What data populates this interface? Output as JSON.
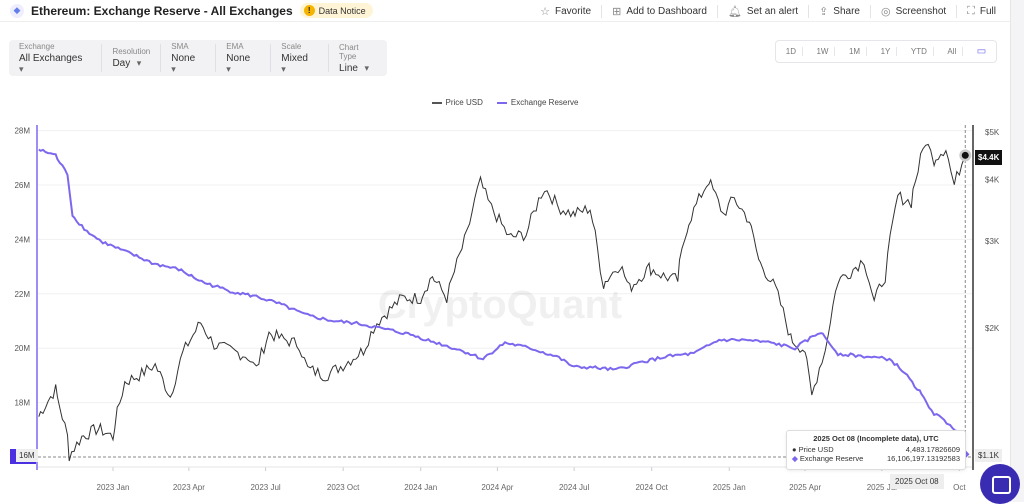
{
  "header": {
    "title": "Ethereum: Exchange Reserve - All Exchanges",
    "notice": "Data Notice",
    "actions": [
      {
        "icon": "star-icon",
        "glyph": "☆",
        "label": "Favorite"
      },
      {
        "icon": "dashboard-icon",
        "glyph": "⊞",
        "label": "Add to Dashboard"
      },
      {
        "icon": "bell-icon",
        "glyph": "🔔︎",
        "label": "Set an alert"
      },
      {
        "icon": "share-icon",
        "glyph": "⇪",
        "label": "Share"
      },
      {
        "icon": "camera-icon",
        "glyph": "◎",
        "label": "Screenshot"
      },
      {
        "icon": "fullscreen-icon",
        "glyph": "⛶",
        "label": "Full"
      }
    ]
  },
  "controls": [
    {
      "label": "Exchange",
      "value": "All Exchanges"
    },
    {
      "label": "Resolution",
      "value": "Day"
    },
    {
      "label": "SMA",
      "value": "None"
    },
    {
      "label": "EMA",
      "value": "None"
    },
    {
      "label": "Scale",
      "value": "Mixed"
    },
    {
      "label": "Chart Type",
      "value": "Line"
    }
  ],
  "ranges": [
    "1D",
    "1W",
    "1M",
    "1Y",
    "YTD",
    "All"
  ],
  "watermark": "CryptoQuant",
  "tooltip": {
    "date": "2025 Oct 08 (Incomplete data), UTC",
    "rows": [
      {
        "label": "Price USD",
        "value": "4,483.17826609"
      },
      {
        "label": "Exchange Reserve",
        "value": "16,106,197.13192583"
      }
    ]
  },
  "crosshair": {
    "date": "2025 Oct 08",
    "price_tag": "$4.4K",
    "low_tag": "$1.1K",
    "reserve_tag": "16M"
  },
  "chart_data": {
    "type": "line",
    "legend_position": "top-center",
    "grid": true,
    "left_axis": {
      "ticks": [
        "28M",
        "26M",
        "24M",
        "22M",
        "20M",
        "18M"
      ],
      "range": [
        16,
        28.2
      ],
      "unit": "M"
    },
    "right_axis": {
      "ticks": [
        "$5K",
        "$4K",
        "$3K",
        "$2K"
      ],
      "scale": "log",
      "range": [
        1100,
        5000
      ]
    },
    "x_ticks": [
      "2023 Jan",
      "2023 Apr",
      "2023 Jul",
      "2023 Oct",
      "2024 Jan",
      "2024 Apr",
      "2024 Jul",
      "2024 Oct",
      "2025 Jan",
      "2025 Apr",
      "2025 Jul",
      "Oct"
    ],
    "series": [
      {
        "name": "Price USD",
        "color": "#333333",
        "axis": "right",
        "points": [
          [
            "2022-10-05",
            1320
          ],
          [
            "2022-10-25",
            1500
          ],
          [
            "2022-11-08",
            1200
          ],
          [
            "2022-11-10",
            1100
          ],
          [
            "2022-11-25",
            1200
          ],
          [
            "2022-12-15",
            1250
          ],
          [
            "2023-01-01",
            1200
          ],
          [
            "2023-01-15",
            1550
          ],
          [
            "2023-02-01",
            1600
          ],
          [
            "2023-02-20",
            1680
          ],
          [
            "2023-03-10",
            1450
          ],
          [
            "2023-03-25",
            1780
          ],
          [
            "2023-04-15",
            2050
          ],
          [
            "2023-05-01",
            1850
          ],
          [
            "2023-05-20",
            1800
          ],
          [
            "2023-06-10",
            1750
          ],
          [
            "2023-06-20",
            1650
          ],
          [
            "2023-07-05",
            1950
          ],
          [
            "2023-07-20",
            1900
          ],
          [
            "2023-08-10",
            1850
          ],
          [
            "2023-08-20",
            1650
          ],
          [
            "2023-09-10",
            1600
          ],
          [
            "2023-10-01",
            1680
          ],
          [
            "2023-10-25",
            1800
          ],
          [
            "2023-11-10",
            2050
          ],
          [
            "2023-12-10",
            2300
          ],
          [
            "2024-01-01",
            2300
          ],
          [
            "2024-01-15",
            2550
          ],
          [
            "2024-02-01",
            2300
          ],
          [
            "2024-02-25",
            3100
          ],
          [
            "2024-03-12",
            3950
          ],
          [
            "2024-03-25",
            3500
          ],
          [
            "2024-04-15",
            3050
          ],
          [
            "2024-05-05",
            3100
          ],
          [
            "2024-05-27",
            3850
          ],
          [
            "2024-06-15",
            3500
          ],
          [
            "2024-06-30",
            3400
          ],
          [
            "2024-07-20",
            3500
          ],
          [
            "2024-08-05",
            2450
          ],
          [
            "2024-08-25",
            2700
          ],
          [
            "2024-09-05",
            2400
          ],
          [
            "2024-09-28",
            2650
          ],
          [
            "2024-10-15",
            2550
          ],
          [
            "2024-11-01",
            2500
          ],
          [
            "2024-11-12",
            3200
          ],
          [
            "2024-12-08",
            4000
          ],
          [
            "2024-12-25",
            3400
          ],
          [
            "2025-01-07",
            3650
          ],
          [
            "2025-01-25",
            3300
          ],
          [
            "2025-02-05",
            2750
          ],
          [
            "2025-02-25",
            2400
          ],
          [
            "2025-03-15",
            1900
          ],
          [
            "2025-04-01",
            1800
          ],
          [
            "2025-04-09",
            1450
          ],
          [
            "2025-04-25",
            1800
          ],
          [
            "2025-05-10",
            2500
          ],
          [
            "2025-05-25",
            2600
          ],
          [
            "2025-06-10",
            2750
          ],
          [
            "2025-06-22",
            2250
          ],
          [
            "2025-07-05",
            2550
          ],
          [
            "2025-07-20",
            3700
          ],
          [
            "2025-08-05",
            3600
          ],
          [
            "2025-08-22",
            4800
          ],
          [
            "2025-09-01",
            4400
          ],
          [
            "2025-09-15",
            4650
          ],
          [
            "2025-09-25",
            3900
          ],
          [
            "2025-10-08",
            4483
          ]
        ]
      },
      {
        "name": "Exchange Reserve",
        "color": "#7b68ee",
        "axis": "left",
        "points": [
          [
            "2022-10-05",
            27.3
          ],
          [
            "2022-10-25",
            27.1
          ],
          [
            "2022-11-08",
            26.4
          ],
          [
            "2022-11-14",
            24.9
          ],
          [
            "2022-12-01",
            24.3
          ],
          [
            "2022-12-20",
            23.9
          ],
          [
            "2023-01-20",
            23.5
          ],
          [
            "2023-02-20",
            23.1
          ],
          [
            "2023-03-20",
            22.9
          ],
          [
            "2023-04-20",
            22.4
          ],
          [
            "2023-05-20",
            22.1
          ],
          [
            "2023-06-20",
            21.9
          ],
          [
            "2023-07-20",
            21.6
          ],
          [
            "2023-08-20",
            21.2
          ],
          [
            "2023-09-20",
            21.0
          ],
          [
            "2023-10-20",
            20.9
          ],
          [
            "2023-11-20",
            20.7
          ],
          [
            "2023-12-20",
            20.5
          ],
          [
            "2024-01-20",
            20.2
          ],
          [
            "2024-02-20",
            19.9
          ],
          [
            "2024-03-15",
            19.6
          ],
          [
            "2024-04-10",
            20.2
          ],
          [
            "2024-05-10",
            20.0
          ],
          [
            "2024-06-10",
            19.7
          ],
          [
            "2024-07-01",
            19.3
          ],
          [
            "2024-07-20",
            19.3
          ],
          [
            "2024-08-20",
            19.2
          ],
          [
            "2024-09-20",
            19.5
          ],
          [
            "2024-10-20",
            19.7
          ],
          [
            "2024-11-20",
            19.8
          ],
          [
            "2024-12-20",
            20.3
          ],
          [
            "2025-01-20",
            20.3
          ],
          [
            "2025-02-20",
            20.2
          ],
          [
            "2025-03-20",
            20.0
          ],
          [
            "2025-04-20",
            20.6
          ],
          [
            "2025-05-10",
            19.8
          ],
          [
            "2025-06-10",
            19.7
          ],
          [
            "2025-07-10",
            19.6
          ],
          [
            "2025-07-25",
            19.2
          ],
          [
            "2025-08-15",
            18.4
          ],
          [
            "2025-09-01",
            17.6
          ],
          [
            "2025-09-20",
            17.2
          ],
          [
            "2025-09-30",
            16.9
          ],
          [
            "2025-10-08",
            16.1
          ]
        ]
      }
    ]
  }
}
